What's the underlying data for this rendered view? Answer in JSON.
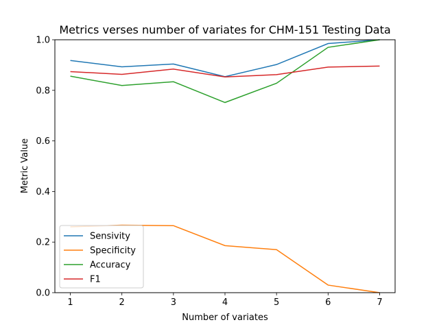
{
  "chart_data": {
    "type": "line",
    "title": "Metrics verses number of variates for CHM-151 Testing Data",
    "xlabel": "Number of variates",
    "ylabel": "Metric Value",
    "x": [
      1,
      2,
      3,
      4,
      5,
      6,
      7
    ],
    "xlim": [
      0.7,
      7.3
    ],
    "ylim": [
      0.0,
      1.0
    ],
    "xticks": [
      "1",
      "2",
      "3",
      "4",
      "5",
      "6",
      "7"
    ],
    "yticks": [
      "0.0",
      "0.2",
      "0.4",
      "0.6",
      "0.8",
      "1.0"
    ],
    "grid": false,
    "legend_position": "lower-left",
    "series": [
      {
        "name": "Sensivity",
        "color": "#1f77b4",
        "values": [
          0.918,
          0.893,
          0.904,
          0.854,
          0.902,
          0.985,
          1.0
        ]
      },
      {
        "name": "Specificity",
        "color": "#ff7f0e",
        "values": [
          0.26,
          0.267,
          0.265,
          0.186,
          0.17,
          0.03,
          0.0
        ]
      },
      {
        "name": "Accuracy",
        "color": "#2ca02c",
        "values": [
          0.856,
          0.819,
          0.834,
          0.752,
          0.828,
          0.97,
          1.0
        ]
      },
      {
        "name": "F1",
        "color": "#d62728",
        "values": [
          0.874,
          0.863,
          0.884,
          0.853,
          0.862,
          0.892,
          0.896
        ]
      }
    ]
  }
}
